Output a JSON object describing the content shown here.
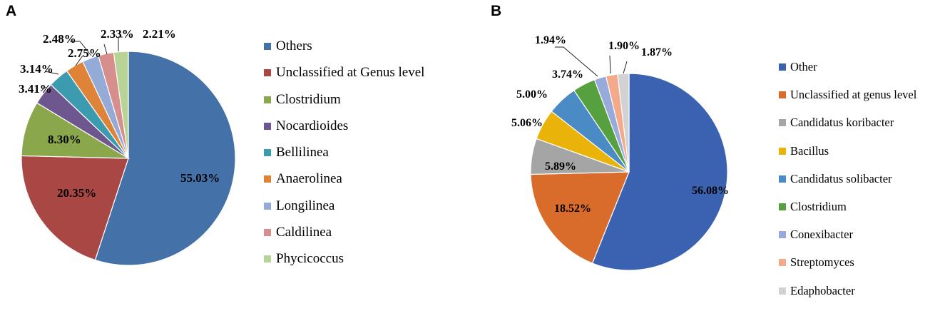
{
  "panels": [
    {
      "letter": "A"
    },
    {
      "letter": "B"
    }
  ],
  "chart_data": [
    {
      "type": "pie",
      "panel": "A",
      "start_angle_deg": 0,
      "direction": "clockwise",
      "legend_position": "right",
      "slices": [
        {
          "label": "Others",
          "value": 55.03,
          "display": "55.03%",
          "color": "#4472a8"
        },
        {
          "label": "Unclassified at Genus level",
          "value": 20.35,
          "display": "20.35%",
          "color": "#a94745"
        },
        {
          "label": "Clostridium",
          "value": 8.3,
          "display": "8.30%",
          "color": "#8aa74c"
        },
        {
          "label": "Nocardioides",
          "value": 3.41,
          "display": "3.41%",
          "color": "#6e568e"
        },
        {
          "label": "Bellilinea",
          "value": 3.14,
          "display": "3.14%",
          "color": "#3d9bb0"
        },
        {
          "label": "Anaerolinea",
          "value": 2.75,
          "display": "2.75%",
          "color": "#df8339"
        },
        {
          "label": "Longilinea",
          "value": 2.48,
          "display": "2.48%",
          "color": "#93abd6"
        },
        {
          "label": "Caldilinea",
          "value": 2.33,
          "display": "2.33%",
          "color": "#d78f8e"
        },
        {
          "label": "Phycicoccus",
          "value": 2.21,
          "display": "2.21%",
          "color": "#b8d396"
        }
      ]
    },
    {
      "type": "pie",
      "panel": "B",
      "start_angle_deg": 0,
      "direction": "clockwise",
      "legend_position": "right",
      "slices": [
        {
          "label": "Other",
          "value": 56.08,
          "display": "56.08%",
          "color": "#3a62b0"
        },
        {
          "label": "Unclassified at genus level",
          "value": 18.52,
          "display": "18.52%",
          "color": "#d96c2b"
        },
        {
          "label": "Candidatus koribacter",
          "value": 5.89,
          "display": "5.89%",
          "color": "#a5a5a5"
        },
        {
          "label": "Bacillus",
          "value": 5.06,
          "display": "5.06%",
          "color": "#e9b30a"
        },
        {
          "label": "Candidatus solibacter",
          "value": 5.0,
          "display": "5.00%",
          "color": "#4a8ac5"
        },
        {
          "label": "Clostridium",
          "value": 3.74,
          "display": "3.74%",
          "color": "#56a03f"
        },
        {
          "label": "Conexibacter",
          "value": 1.94,
          "display": "1.94%",
          "color": "#98a9dc"
        },
        {
          "label": "Streptomyces",
          "value": 1.9,
          "display": "1.90%",
          "color": "#f4a98a"
        },
        {
          "label": "Edaphobacter",
          "value": 1.87,
          "display": "1.87%",
          "color": "#d2d2d2"
        }
      ]
    }
  ]
}
